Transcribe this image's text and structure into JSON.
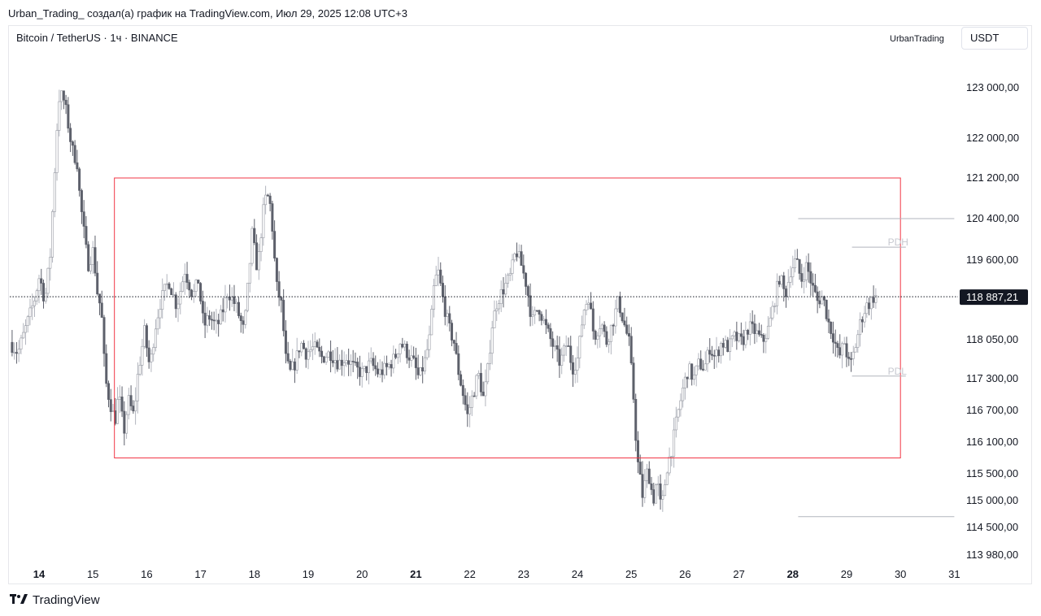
{
  "header": {
    "caption": "Urban_Trading_ создал(а) график на TradingView.com, Июл 29, 2025 12:08 UTC+3"
  },
  "chart_header": {
    "symbol": "Bitcoin / TetherUS · 1ч · BINANCE",
    "author": "UrbanTrading",
    "currency": "USDT"
  },
  "footer": {
    "brand": "TradingView",
    "logo_icon": "tradingview-logo-icon"
  },
  "chart_data": {
    "type": "candlestick",
    "symbol": "Bitcoin / TetherUS",
    "interval": "1ч",
    "exchange": "BINANCE",
    "currency": "USDT",
    "y_ticks": [
      {
        "label": "123 000,00",
        "value": 123000
      },
      {
        "label": "122 000,00",
        "value": 122000
      },
      {
        "label": "121 200,00",
        "value": 121200
      },
      {
        "label": "120 400,00",
        "value": 120400
      },
      {
        "label": "119 600,00",
        "value": 119600
      },
      {
        "label": "118 050,00",
        "value": 118050
      },
      {
        "label": "117 300,00",
        "value": 117300
      },
      {
        "label": "116 700,00",
        "value": 116700
      },
      {
        "label": "116 100,00",
        "value": 116100
      },
      {
        "label": "115 500,00",
        "value": 115500
      },
      {
        "label": "115 000,00",
        "value": 115000
      },
      {
        "label": "114 500,00",
        "value": 114500
      },
      {
        "label": "113 980,00",
        "value": 113980
      }
    ],
    "x_ticks": [
      {
        "label": "14",
        "day": 14,
        "bold": true
      },
      {
        "label": "15",
        "day": 15,
        "bold": false
      },
      {
        "label": "16",
        "day": 16,
        "bold": false
      },
      {
        "label": "17",
        "day": 17,
        "bold": false
      },
      {
        "label": "18",
        "day": 18,
        "bold": false
      },
      {
        "label": "19",
        "day": 19,
        "bold": false
      },
      {
        "label": "20",
        "day": 20,
        "bold": false
      },
      {
        "label": "21",
        "day": 21,
        "bold": true
      },
      {
        "label": "22",
        "day": 22,
        "bold": false
      },
      {
        "label": "23",
        "day": 23,
        "bold": false
      },
      {
        "label": "24",
        "day": 24,
        "bold": false
      },
      {
        "label": "25",
        "day": 25,
        "bold": false
      },
      {
        "label": "26",
        "day": 26,
        "bold": false
      },
      {
        "label": "27",
        "day": 27,
        "bold": false
      },
      {
        "label": "28",
        "day": 28,
        "bold": true
      },
      {
        "label": "29",
        "day": 29,
        "bold": false
      },
      {
        "label": "30",
        "day": 30,
        "bold": false
      },
      {
        "label": "31",
        "day": 31,
        "bold": false
      }
    ],
    "current_price": {
      "label": "118 887,21",
      "value": 118887.21
    },
    "range_box": {
      "day_start": 15.4,
      "day_end": 30.0,
      "price_top": 121200,
      "price_bottom": 115800,
      "color": "#f23645"
    },
    "levels": [
      {
        "label": "",
        "value": 120400,
        "day_start": 28.1,
        "day_end": 31.0
      },
      {
        "label": "PDH",
        "value": 119850,
        "day_start": 29.1,
        "day_end": 30.1
      },
      {
        "label": "PDL",
        "value": 117350,
        "day_start": 29.1,
        "day_end": 30.1
      },
      {
        "label": "",
        "value": 114700,
        "day_start": 28.1,
        "day_end": 31.0
      }
    ],
    "price_path": [
      [
        13.5,
        118000
      ],
      [
        13.65,
        117800
      ],
      [
        13.8,
        118300
      ],
      [
        13.95,
        118800
      ],
      [
        14.05,
        119300
      ],
      [
        14.15,
        118800
      ],
      [
        14.25,
        119700
      ],
      [
        14.33,
        121300
      ],
      [
        14.4,
        122700
      ],
      [
        14.45,
        123000
      ],
      [
        14.55,
        122500
      ],
      [
        14.65,
        121800
      ],
      [
        14.75,
        121500
      ],
      [
        14.8,
        120800
      ],
      [
        14.88,
        120100
      ],
      [
        14.95,
        119500
      ],
      [
        15.05,
        119800
      ],
      [
        15.12,
        119000
      ],
      [
        15.2,
        118600
      ],
      [
        15.27,
        117300
      ],
      [
        15.35,
        116900
      ],
      [
        15.45,
        116500
      ],
      [
        15.52,
        117000
      ],
      [
        15.62,
        116300
      ],
      [
        15.7,
        116900
      ],
      [
        15.8,
        116600
      ],
      [
        15.88,
        117400
      ],
      [
        16.0,
        118200
      ],
      [
        16.1,
        117500
      ],
      [
        16.2,
        118300
      ],
      [
        16.3,
        118800
      ],
      [
        16.45,
        119200
      ],
      [
        16.6,
        118700
      ],
      [
        16.75,
        119400
      ],
      [
        16.9,
        118900
      ],
      [
        17.0,
        119200
      ],
      [
        17.1,
        118300
      ],
      [
        17.2,
        118500
      ],
      [
        17.35,
        118300
      ],
      [
        17.45,
        118600
      ],
      [
        17.55,
        119000
      ],
      [
        17.7,
        118700
      ],
      [
        17.85,
        118200
      ],
      [
        17.93,
        119200
      ],
      [
        18.0,
        120100
      ],
      [
        18.1,
        119400
      ],
      [
        18.2,
        120500
      ],
      [
        18.27,
        120900
      ],
      [
        18.35,
        120600
      ],
      [
        18.45,
        119100
      ],
      [
        18.55,
        118700
      ],
      [
        18.62,
        117700
      ],
      [
        18.7,
        117400
      ],
      [
        18.8,
        117600
      ],
      [
        18.9,
        118000
      ],
      [
        19.0,
        117800
      ],
      [
        19.15,
        117900
      ],
      [
        19.3,
        117700
      ],
      [
        19.45,
        117800
      ],
      [
        19.6,
        117600
      ],
      [
        19.75,
        117700
      ],
      [
        19.9,
        117500
      ],
      [
        20.05,
        117400
      ],
      [
        20.2,
        117600
      ],
      [
        20.35,
        117400
      ],
      [
        20.5,
        117500
      ],
      [
        20.65,
        117700
      ],
      [
        20.75,
        118000
      ],
      [
        20.88,
        117800
      ],
      [
        21.0,
        117600
      ],
      [
        21.1,
        117300
      ],
      [
        21.2,
        117600
      ],
      [
        21.3,
        118100
      ],
      [
        21.38,
        119100
      ],
      [
        21.45,
        119400
      ],
      [
        21.55,
        118800
      ],
      [
        21.65,
        118300
      ],
      [
        21.75,
        118000
      ],
      [
        21.82,
        117500
      ],
      [
        21.92,
        117000
      ],
      [
        22.0,
        116600
      ],
      [
        22.1,
        117000
      ],
      [
        22.2,
        117400
      ],
      [
        22.3,
        116900
      ],
      [
        22.38,
        117500
      ],
      [
        22.45,
        118300
      ],
      [
        22.55,
        118800
      ],
      [
        22.65,
        119000
      ],
      [
        22.8,
        119300
      ],
      [
        22.9,
        119800
      ],
      [
        23.0,
        119500
      ],
      [
        23.1,
        119100
      ],
      [
        23.2,
        118400
      ],
      [
        23.32,
        118700
      ],
      [
        23.45,
        118300
      ],
      [
        23.6,
        117900
      ],
      [
        23.72,
        117600
      ],
      [
        23.85,
        118000
      ],
      [
        23.95,
        117500
      ],
      [
        24.05,
        117700
      ],
      [
        24.15,
        118600
      ],
      [
        24.25,
        118900
      ],
      [
        24.35,
        118100
      ],
      [
        24.48,
        118400
      ],
      [
        24.58,
        118000
      ],
      [
        24.7,
        118400
      ],
      [
        24.8,
        118800
      ],
      [
        24.9,
        118400
      ],
      [
        25.0,
        118000
      ],
      [
        25.08,
        117000
      ],
      [
        25.15,
        115800
      ],
      [
        25.25,
        115100
      ],
      [
        25.35,
        115600
      ],
      [
        25.45,
        115000
      ],
      [
        25.52,
        115400
      ],
      [
        25.6,
        114800
      ],
      [
        25.7,
        115600
      ],
      [
        25.8,
        116000
      ],
      [
        25.9,
        116600
      ],
      [
        26.0,
        117100
      ],
      [
        26.1,
        117500
      ],
      [
        26.2,
        117300
      ],
      [
        26.3,
        117600
      ],
      [
        26.4,
        117500
      ],
      [
        26.5,
        117900
      ],
      [
        26.6,
        117700
      ],
      [
        26.72,
        118000
      ],
      [
        26.85,
        117900
      ],
      [
        26.95,
        118100
      ],
      [
        27.1,
        118000
      ],
      [
        27.22,
        118300
      ],
      [
        27.35,
        118200
      ],
      [
        27.48,
        118000
      ],
      [
        27.6,
        118300
      ],
      [
        27.7,
        118800
      ],
      [
        27.8,
        119300
      ],
      [
        27.9,
        118900
      ],
      [
        28.0,
        119400
      ],
      [
        28.1,
        119600
      ],
      [
        28.2,
        119200
      ],
      [
        28.3,
        119500
      ],
      [
        28.4,
        119100
      ],
      [
        28.5,
        118800
      ],
      [
        28.6,
        118900
      ],
      [
        28.7,
        118400
      ],
      [
        28.8,
        118100
      ],
      [
        28.9,
        117700
      ],
      [
        29.0,
        118000
      ],
      [
        29.1,
        117500
      ],
      [
        29.2,
        117900
      ],
      [
        29.3,
        118400
      ],
      [
        29.4,
        118700
      ],
      [
        29.5,
        118800
      ],
      [
        29.55,
        118887
      ]
    ]
  }
}
